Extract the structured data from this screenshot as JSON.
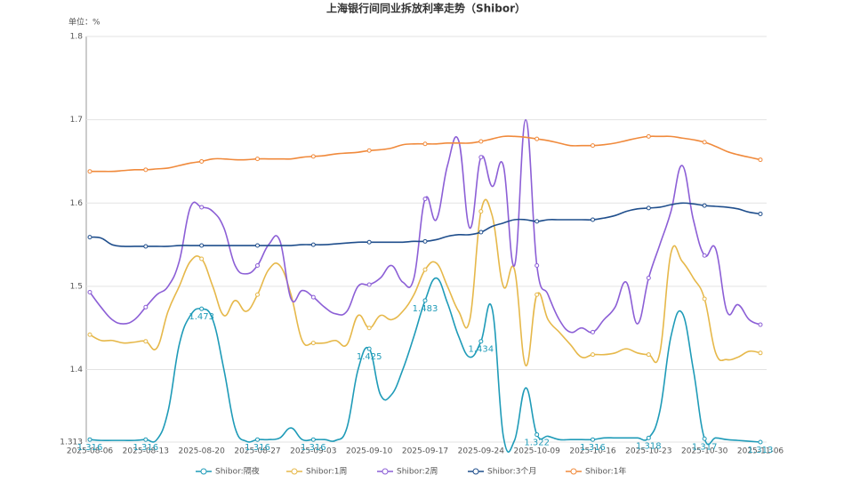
{
  "chart_data": {
    "type": "line",
    "title": "上海银行间同业拆放利率走势（Shibor）",
    "y_unit": "单位：%",
    "categories": [
      "2025-08-06",
      null,
      null,
      null,
      null,
      "2025-08-13",
      null,
      null,
      null,
      null,
      "2025-08-20",
      null,
      null,
      null,
      null,
      "2025-08-27",
      null,
      null,
      null,
      null,
      "2025-09-03",
      null,
      null,
      null,
      null,
      "2025-09-10",
      null,
      null,
      null,
      null,
      "2025-09-17",
      null,
      null,
      null,
      null,
      "2025-09-24",
      null,
      null,
      null,
      null,
      "2025-10-09",
      null,
      null,
      null,
      null,
      "2025-10-16",
      null,
      null,
      null,
      null,
      "2025-10-23",
      null,
      null,
      null,
      null,
      "2025-10-30",
      null,
      null,
      null,
      null,
      "2025-11-06"
    ],
    "ylim": [
      1.313,
      1.8
    ],
    "yticks": [
      1.313,
      1.4,
      1.5,
      1.6,
      1.7,
      1.8
    ],
    "grid": true,
    "legend": "bottom",
    "data_labels_series": 0,
    "series": [
      {
        "name": "Shibor:隔夜",
        "color": "#1f9bb8",
        "values": [
          1.316,
          1.315,
          1.315,
          1.315,
          1.315,
          1.316,
          1.316,
          1.35,
          1.43,
          1.465,
          1.473,
          1.46,
          1.4,
          1.33,
          1.314,
          1.316,
          1.316,
          1.318,
          1.33,
          1.316,
          1.316,
          1.316,
          1.315,
          1.33,
          1.4,
          1.425,
          1.37,
          1.37,
          1.4,
          1.44,
          1.483,
          1.51,
          1.48,
          1.44,
          1.415,
          1.434,
          1.473,
          1.32,
          1.315,
          1.378,
          1.322,
          1.32,
          1.316,
          1.316,
          1.316,
          1.316,
          1.318,
          1.318,
          1.318,
          1.318,
          1.318,
          1.35,
          1.44,
          1.468,
          1.4,
          1.317,
          1.318,
          1.316,
          1.315,
          1.314,
          1.313
        ]
      },
      {
        "name": "Shibor:1周",
        "color": "#e6b84a",
        "values": [
          1.442,
          1.435,
          1.435,
          1.432,
          1.433,
          1.434,
          1.426,
          1.47,
          1.5,
          1.53,
          1.533,
          1.5,
          1.465,
          1.483,
          1.47,
          1.49,
          1.52,
          1.525,
          1.49,
          1.435,
          1.432,
          1.432,
          1.435,
          1.43,
          1.465,
          1.45,
          1.465,
          1.46,
          1.47,
          1.49,
          1.52,
          1.528,
          1.5,
          1.47,
          1.46,
          1.59,
          1.585,
          1.5,
          1.52,
          1.405,
          1.49,
          1.46,
          1.445,
          1.43,
          1.415,
          1.418,
          1.418,
          1.42,
          1.425,
          1.42,
          1.418,
          1.42,
          1.54,
          1.53,
          1.51,
          1.485,
          1.42,
          1.412,
          1.415,
          1.422,
          1.42
        ]
      },
      {
        "name": "Shibor:2周",
        "color": "#8c5fd6",
        "values": [
          1.493,
          1.475,
          1.46,
          1.455,
          1.46,
          1.475,
          1.49,
          1.5,
          1.53,
          1.595,
          1.595,
          1.59,
          1.57,
          1.525,
          1.515,
          1.525,
          1.55,
          1.555,
          1.485,
          1.495,
          1.487,
          1.475,
          1.467,
          1.47,
          1.5,
          1.502,
          1.51,
          1.525,
          1.505,
          1.51,
          1.605,
          1.58,
          1.645,
          1.675,
          1.57,
          1.655,
          1.62,
          1.645,
          1.525,
          1.7,
          1.525,
          1.49,
          1.46,
          1.445,
          1.45,
          1.445,
          1.46,
          1.475,
          1.505,
          1.455,
          1.51,
          1.55,
          1.59,
          1.645,
          1.58,
          1.537,
          1.545,
          1.47,
          1.478,
          1.46,
          1.454
        ]
      },
      {
        "name": "Shibor:3个月",
        "color": "#1f4e8c",
        "values": [
          1.559,
          1.558,
          1.55,
          1.548,
          1.548,
          1.548,
          1.548,
          1.548,
          1.549,
          1.549,
          1.549,
          1.549,
          1.549,
          1.549,
          1.549,
          1.549,
          1.549,
          1.549,
          1.549,
          1.55,
          1.55,
          1.55,
          1.551,
          1.552,
          1.553,
          1.553,
          1.553,
          1.553,
          1.553,
          1.554,
          1.554,
          1.556,
          1.56,
          1.562,
          1.562,
          1.565,
          1.572,
          1.576,
          1.58,
          1.58,
          1.578,
          1.58,
          1.58,
          1.58,
          1.58,
          1.58,
          1.582,
          1.585,
          1.59,
          1.593,
          1.594,
          1.595,
          1.598,
          1.6,
          1.599,
          1.597,
          1.596,
          1.595,
          1.593,
          1.589,
          1.587
        ]
      },
      {
        "name": "Shibor:1年",
        "color": "#f08a3c",
        "values": [
          1.638,
          1.638,
          1.638,
          1.639,
          1.64,
          1.64,
          1.641,
          1.642,
          1.645,
          1.648,
          1.65,
          1.653,
          1.653,
          1.652,
          1.652,
          1.653,
          1.653,
          1.653,
          1.653,
          1.655,
          1.656,
          1.657,
          1.659,
          1.66,
          1.661,
          1.663,
          1.664,
          1.666,
          1.67,
          1.671,
          1.671,
          1.671,
          1.672,
          1.672,
          1.672,
          1.674,
          1.677,
          1.68,
          1.68,
          1.679,
          1.677,
          1.675,
          1.672,
          1.669,
          1.669,
          1.669,
          1.67,
          1.672,
          1.675,
          1.678,
          1.68,
          1.68,
          1.68,
          1.678,
          1.676,
          1.673,
          1.668,
          1.662,
          1.658,
          1.655,
          1.652
        ]
      }
    ]
  }
}
